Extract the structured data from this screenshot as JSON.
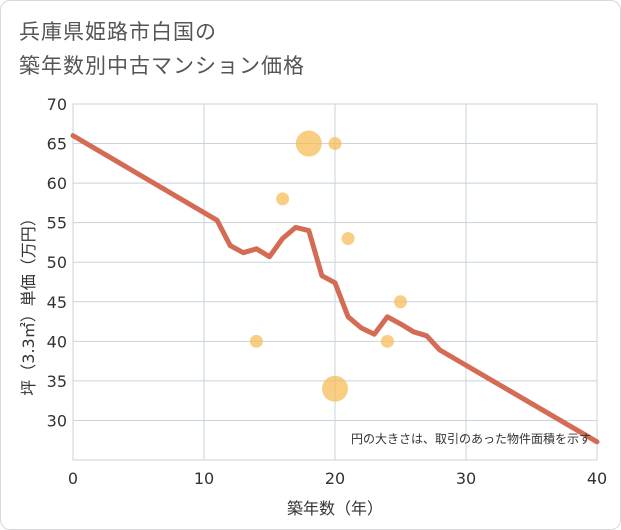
{
  "title_lines": [
    "兵庫県姫路市白国の",
    "築年数別中古マンション価格"
  ],
  "chart_data": {
    "type": "scatter",
    "title": "兵庫県姫路市白国の築年数別中古マンション価格",
    "xlabel": "築年数（年）",
    "ylabel": "坪（3.3㎡）単価（万円）",
    "xlim": [
      0,
      40
    ],
    "ylim": [
      25,
      70
    ],
    "xticks": [
      0,
      10,
      20,
      30,
      40
    ],
    "yticks": [
      30,
      35,
      40,
      45,
      50,
      55,
      60,
      65,
      70
    ],
    "grid": true,
    "note": "円の大きさは、取引のあった物件面積を示す",
    "bubble_color": "#f5be5a",
    "line_color": "#d46b55",
    "bubbles": [
      {
        "x": 14,
        "y": 40,
        "size": 1
      },
      {
        "x": 16,
        "y": 58,
        "size": 1
      },
      {
        "x": 18,
        "y": 65,
        "size": 4
      },
      {
        "x": 20,
        "y": 65,
        "size": 1
      },
      {
        "x": 20,
        "y": 34,
        "size": 4
      },
      {
        "x": 21,
        "y": 53,
        "size": 1
      },
      {
        "x": 24,
        "y": 40,
        "size": 1
      },
      {
        "x": 25,
        "y": 45,
        "size": 1
      }
    ],
    "trend_line": [
      {
        "x": 0,
        "y": 66
      },
      {
        "x": 11,
        "y": 55.3
      },
      {
        "x": 12,
        "y": 52.1
      },
      {
        "x": 13,
        "y": 51.2
      },
      {
        "x": 14,
        "y": 51.7
      },
      {
        "x": 15,
        "y": 50.7
      },
      {
        "x": 16,
        "y": 53
      },
      {
        "x": 17,
        "y": 54.4
      },
      {
        "x": 18,
        "y": 54
      },
      {
        "x": 19,
        "y": 48.3
      },
      {
        "x": 20,
        "y": 47.4
      },
      {
        "x": 21,
        "y": 43.1
      },
      {
        "x": 22,
        "y": 41.7
      },
      {
        "x": 23,
        "y": 40.9
      },
      {
        "x": 24,
        "y": 43.1
      },
      {
        "x": 25,
        "y": 42.2
      },
      {
        "x": 26,
        "y": 41.2
      },
      {
        "x": 27,
        "y": 40.7
      },
      {
        "x": 28,
        "y": 38.9
      },
      {
        "x": 40,
        "y": 27.3
      }
    ]
  }
}
